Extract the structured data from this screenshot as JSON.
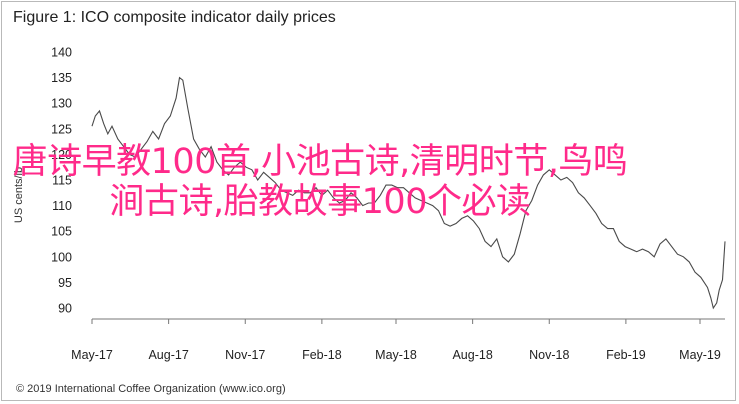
{
  "figure_title": "Figure 1: ICO composite indicator daily prices",
  "source": "© 2019 International Coffee Organization (www.ico.org)",
  "overlay_text": "唐诗早教100首,小池古诗,清明时节,鸟鸣涧古诗,胎教故事100个必读",
  "colors": {
    "line": "#4a4a4a",
    "overlay": "#ff2a8a",
    "axis": "#777777"
  },
  "chart_data": {
    "type": "line",
    "title": "Figure 1: ICO composite indicator daily prices",
    "xlabel": "",
    "ylabel": "US cents/lb",
    "ylim": [
      90,
      140
    ],
    "xlim": [
      "2017-05-01",
      "2019-05-31"
    ],
    "yticks": [
      90,
      95,
      100,
      105,
      110,
      115,
      120,
      125,
      130,
      135,
      140
    ],
    "xticks": [
      "May-17",
      "Aug-17",
      "Nov-17",
      "Feb-18",
      "May-18",
      "Aug-18",
      "Nov-18",
      "Feb-19",
      "May-19"
    ],
    "grid": false,
    "series": [
      {
        "x": [
          "2017-05-01",
          "2017-05-05",
          "2017-05-10",
          "2017-05-15",
          "2017-05-20",
          "2017-05-25",
          "2017-06-01",
          "2017-06-08",
          "2017-06-15",
          "2017-06-22",
          "2017-06-29",
          "2017-07-06",
          "2017-07-13",
          "2017-07-20",
          "2017-07-27",
          "2017-08-03",
          "2017-08-10",
          "2017-08-14",
          "2017-08-18",
          "2017-08-24",
          "2017-08-31",
          "2017-09-07",
          "2017-09-14",
          "2017-09-21",
          "2017-09-28",
          "2017-10-05",
          "2017-10-12",
          "2017-10-19",
          "2017-10-26",
          "2017-11-02",
          "2017-11-09",
          "2017-11-16",
          "2017-11-23",
          "2017-11-30",
          "2017-12-07",
          "2017-12-14",
          "2017-12-21",
          "2017-12-28",
          "2018-01-04",
          "2018-01-11",
          "2018-01-18",
          "2018-01-25",
          "2018-02-01",
          "2018-02-08",
          "2018-02-15",
          "2018-02-22",
          "2018-03-01",
          "2018-03-08",
          "2018-03-15",
          "2018-03-22",
          "2018-03-29",
          "2018-04-05",
          "2018-04-12",
          "2018-04-19",
          "2018-04-26",
          "2018-05-03",
          "2018-05-10",
          "2018-05-17",
          "2018-05-24",
          "2018-05-31",
          "2018-06-07",
          "2018-06-14",
          "2018-06-21",
          "2018-06-28",
          "2018-07-05",
          "2018-07-12",
          "2018-07-19",
          "2018-07-26",
          "2018-08-02",
          "2018-08-09",
          "2018-08-16",
          "2018-08-23",
          "2018-08-30",
          "2018-09-06",
          "2018-09-13",
          "2018-09-20",
          "2018-09-27",
          "2018-10-04",
          "2018-10-11",
          "2018-10-18",
          "2018-10-25",
          "2018-11-01",
          "2018-11-08",
          "2018-11-15",
          "2018-11-22",
          "2018-11-29",
          "2018-12-06",
          "2018-12-13",
          "2018-12-20",
          "2018-12-27",
          "2019-01-03",
          "2019-01-10",
          "2019-01-17",
          "2019-01-24",
          "2019-01-31",
          "2019-02-07",
          "2019-02-14",
          "2019-02-21",
          "2019-02-28",
          "2019-03-07",
          "2019-03-14",
          "2019-03-21",
          "2019-03-28",
          "2019-04-04",
          "2019-04-11",
          "2019-04-18",
          "2019-04-25",
          "2019-05-02",
          "2019-05-06",
          "2019-05-10",
          "2019-05-14",
          "2019-05-17",
          "2019-05-21",
          "2019-05-24",
          "2019-05-28",
          "2019-05-31"
        ],
        "values": [
          125.5,
          127.5,
          128.5,
          126,
          124,
          125.5,
          123,
          121.5,
          120,
          119.5,
          121,
          122.5,
          124.5,
          123,
          126,
          127.5,
          131,
          135,
          134.5,
          129,
          123,
          121,
          119.5,
          121.5,
          118.5,
          117,
          116,
          117.5,
          118.5,
          117.5,
          117,
          115,
          116.5,
          115.5,
          114.5,
          113,
          112.5,
          112,
          113,
          112.5,
          112.5,
          113.5,
          112,
          113,
          111.5,
          110.5,
          111,
          112.5,
          111.5,
          110,
          110.5,
          110.5,
          112,
          114,
          114,
          113.5,
          113.5,
          112.5,
          111.5,
          111,
          110.5,
          110,
          109,
          106.5,
          106,
          106.5,
          107.5,
          108,
          107,
          105.5,
          103,
          102,
          103.5,
          100,
          99,
          100.5,
          104.5,
          109,
          111,
          114,
          116,
          117,
          116,
          115,
          115.5,
          114.5,
          112.5,
          111.5,
          110,
          108.5,
          106.5,
          105.5,
          105.5,
          103,
          102,
          101.5,
          101,
          101.5,
          101,
          100,
          102.5,
          103.5,
          102,
          100.5,
          100,
          99,
          97,
          96,
          95,
          94,
          92,
          90,
          91,
          93.5,
          95.5,
          103
        ]
      }
    ]
  }
}
